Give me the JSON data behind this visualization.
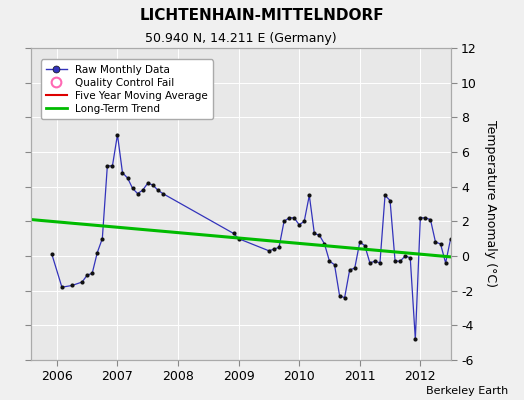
{
  "title": "LICHTENHAIN-MITTELNDORF",
  "subtitle": "50.940 N, 14.211 E (Germany)",
  "ylabel": "Temperature Anomaly (°C)",
  "credit": "Berkeley Earth",
  "ylim": [
    -6,
    12
  ],
  "yticks": [
    -6,
    -4,
    -2,
    0,
    2,
    4,
    6,
    8,
    10,
    12
  ],
  "xlim": [
    2005.58,
    2012.5
  ],
  "xticks": [
    2006,
    2007,
    2008,
    2009,
    2010,
    2011,
    2012
  ],
  "fig_bg": "#f0f0f0",
  "plot_bg": "#e8e8e8",
  "raw_line_color": "#3333bb",
  "raw_marker_color": "#111111",
  "trend_color": "#00bb00",
  "moving_avg_color": "#dd0000",
  "raw_x": [
    2005.917,
    2006.083,
    2006.25,
    2006.417,
    2006.5,
    2006.583,
    2006.667,
    2006.75,
    2006.833,
    2006.917,
    2007.0,
    2007.083,
    2007.167,
    2007.25,
    2007.333,
    2007.417,
    2007.5,
    2007.583,
    2007.667,
    2007.75,
    2008.917,
    2009.0,
    2009.5,
    2009.583,
    2009.667,
    2009.75,
    2009.833,
    2009.917,
    2010.0,
    2010.083,
    2010.167,
    2010.25,
    2010.333,
    2010.417,
    2010.5,
    2010.583,
    2010.667,
    2010.75,
    2010.833,
    2010.917,
    2011.0,
    2011.083,
    2011.167,
    2011.25,
    2011.333,
    2011.417,
    2011.5,
    2011.583,
    2011.667,
    2011.75,
    2011.833,
    2011.917,
    2012.0,
    2012.083,
    2012.167,
    2012.25,
    2012.333,
    2012.417,
    2012.5
  ],
  "raw_y": [
    0.1,
    -1.8,
    -1.7,
    -1.5,
    -1.1,
    -1.0,
    0.2,
    1.0,
    5.2,
    5.2,
    7.0,
    4.8,
    4.5,
    3.9,
    3.6,
    3.8,
    4.2,
    4.1,
    3.8,
    3.6,
    1.3,
    1.0,
    0.3,
    0.4,
    0.5,
    2.0,
    2.2,
    2.2,
    1.8,
    2.0,
    3.5,
    1.3,
    1.2,
    0.7,
    -0.3,
    -0.5,
    -2.3,
    -2.4,
    -0.8,
    -0.7,
    0.8,
    0.6,
    -0.4,
    -0.3,
    -0.4,
    3.5,
    3.2,
    -0.3,
    -0.3,
    0.0,
    -0.1,
    -4.8,
    2.2,
    2.2,
    2.1,
    0.8,
    0.7,
    -0.4,
    1.0
  ],
  "trend_x": [
    2005.58,
    2012.5
  ],
  "trend_y": [
    2.1,
    -0.05
  ]
}
